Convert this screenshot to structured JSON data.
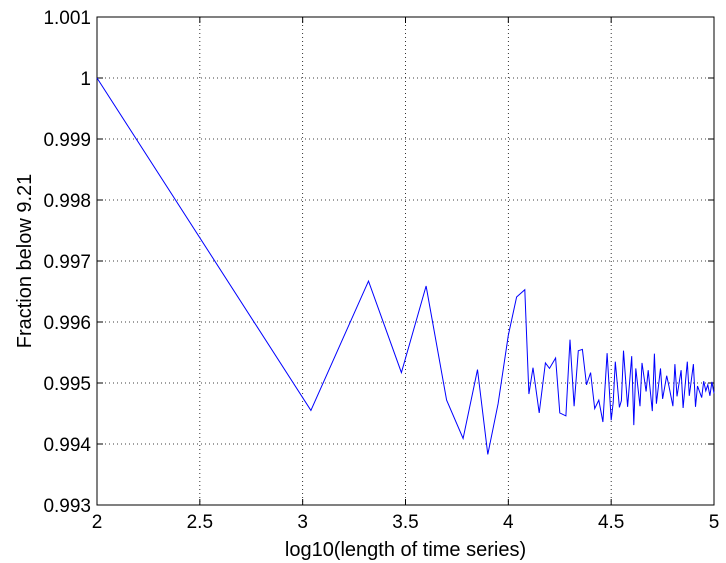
{
  "chart_data": {
    "type": "line",
    "title": "",
    "xlabel": "log10(length of time series)",
    "ylabel": "Fraction below 9.21",
    "xlim": [
      2,
      5
    ],
    "ylim": [
      0.993,
      1.001
    ],
    "grid": true,
    "grid_style": "dotted",
    "x_ticks": [
      2,
      2.5,
      3,
      3.5,
      4,
      4.5,
      5
    ],
    "x_tick_labels": [
      "2",
      "2.5",
      "3",
      "3.5",
      "4",
      "4.5",
      "5"
    ],
    "y_ticks": [
      0.993,
      0.994,
      0.995,
      0.996,
      0.997,
      0.998,
      0.999,
      1,
      1.001
    ],
    "y_tick_labels": [
      "0.993",
      "0.994",
      "0.995",
      "0.996",
      "0.997",
      "0.998",
      "0.999",
      "1",
      "1.001"
    ],
    "series": [
      {
        "color": "#0000ff",
        "x": [
          2.0,
          3.04,
          3.32,
          3.48,
          3.6,
          3.7,
          3.78,
          3.85,
          3.9,
          3.95,
          4.0,
          4.04,
          4.08,
          4.1,
          4.12,
          4.15,
          4.18,
          4.2,
          4.23,
          4.25,
          4.28,
          4.3,
          4.32,
          4.34,
          4.36,
          4.38,
          4.4,
          4.42,
          4.44,
          4.46,
          4.48,
          4.5,
          4.51,
          4.52,
          4.54,
          4.55,
          4.56,
          4.58,
          4.6,
          4.61,
          4.62,
          4.64,
          4.65,
          4.67,
          4.68,
          4.7,
          4.71,
          4.72,
          4.74,
          4.75,
          4.77,
          4.78,
          4.8,
          4.81,
          4.82,
          4.84,
          4.85,
          4.87,
          4.88,
          4.9,
          4.91,
          4.92,
          4.94,
          4.95,
          4.96,
          4.97,
          4.98,
          4.99,
          5.0
        ],
        "y": [
          1.0,
          0.99455,
          0.99667,
          0.99517,
          0.99659,
          0.99472,
          0.99409,
          0.99522,
          0.99383,
          0.99466,
          0.99578,
          0.99641,
          0.99653,
          0.99482,
          0.99525,
          0.99451,
          0.99533,
          0.99524,
          0.99541,
          0.99451,
          0.99446,
          0.99571,
          0.99462,
          0.99553,
          0.99555,
          0.99497,
          0.99517,
          0.99458,
          0.99472,
          0.99436,
          0.99549,
          0.99439,
          0.99468,
          0.99535,
          0.9946,
          0.99471,
          0.99553,
          0.99461,
          0.99544,
          0.99431,
          0.99524,
          0.99462,
          0.99533,
          0.99486,
          0.99521,
          0.99454,
          0.99548,
          0.99466,
          0.99524,
          0.99474,
          0.99512,
          0.99496,
          0.99462,
          0.99531,
          0.99478,
          0.99521,
          0.99459,
          0.99535,
          0.99479,
          0.99531,
          0.99461,
          0.99495,
          0.99476,
          0.99503,
          0.99487,
          0.99497,
          0.99479,
          0.99502,
          0.99483
        ]
      }
    ]
  }
}
